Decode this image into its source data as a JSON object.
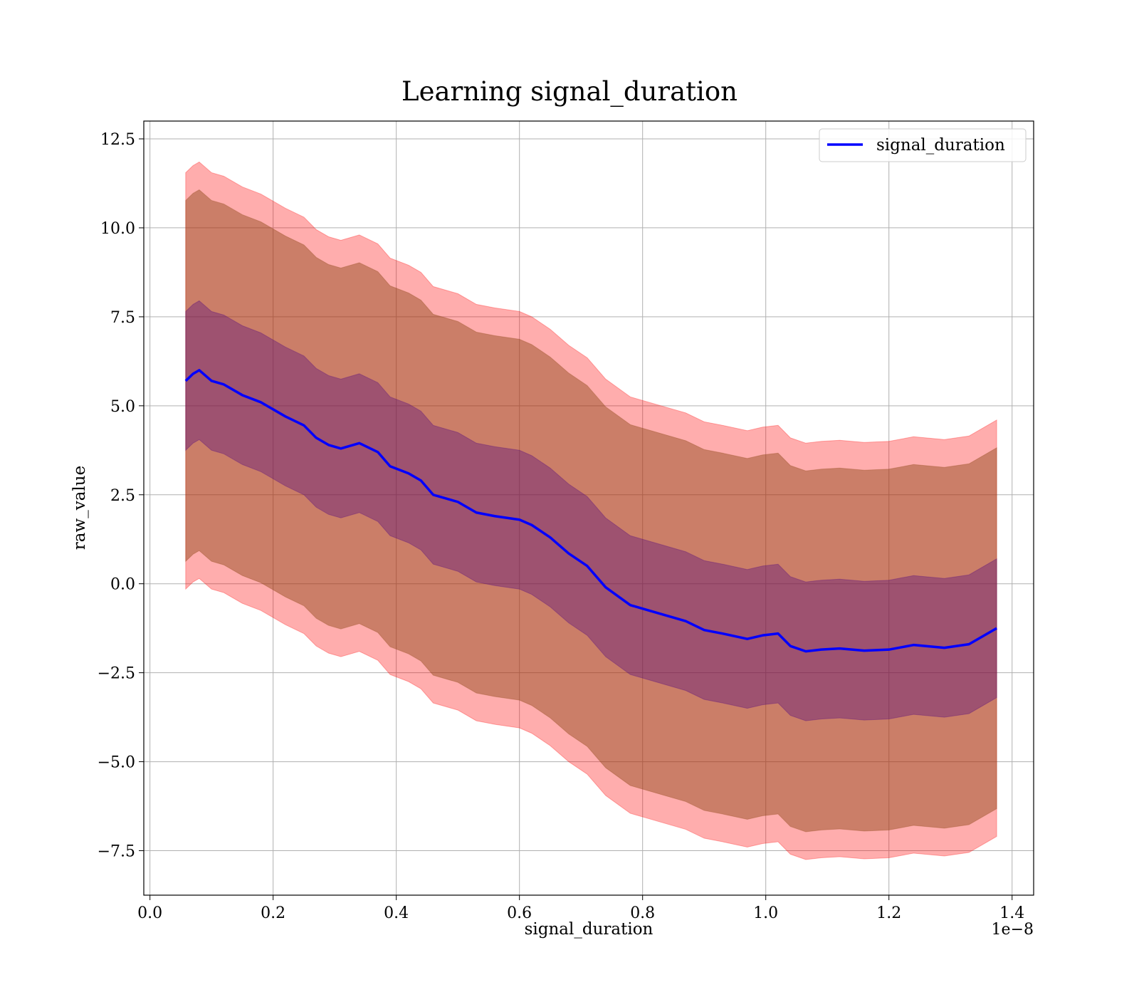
{
  "chart_data": {
    "type": "line",
    "title": "Learning signal_duration",
    "xlabel": "signal_duration",
    "ylabel": "raw_value",
    "x_offset_label": "1e−8",
    "xlim": [
      -0.01,
      1.435
    ],
    "ylim": [
      -8.75,
      13.0
    ],
    "x_ticks": [
      0.0,
      0.2,
      0.4,
      0.6,
      0.8,
      1.0,
      1.2,
      1.4
    ],
    "x_tick_labels": [
      "0.0",
      "0.2",
      "0.4",
      "0.6",
      "0.8",
      "1.0",
      "1.2",
      "1.4"
    ],
    "y_ticks": [
      -7.5,
      -5.0,
      -2.5,
      0.0,
      2.5,
      5.0,
      7.5,
      10.0,
      12.5
    ],
    "y_tick_labels": [
      "−7.5",
      "−5.0",
      "−2.5",
      "0.0",
      "2.5",
      "5.0",
      "7.5",
      "10.0",
      "12.5"
    ],
    "grid": true,
    "legend_position": "top-right",
    "colors": {
      "line": "#0000ff",
      "band3": "#ff0000",
      "band2": "#8b4513",
      "band1": "#4b0082",
      "grid": "#b0b0b0"
    },
    "series": [
      {
        "name": "signal_duration",
        "x": [
          0.058,
          0.07,
          0.08,
          0.1,
          0.12,
          0.15,
          0.18,
          0.2,
          0.22,
          0.25,
          0.27,
          0.29,
          0.31,
          0.34,
          0.37,
          0.39,
          0.42,
          0.44,
          0.46,
          0.5,
          0.53,
          0.56,
          0.6,
          0.62,
          0.65,
          0.68,
          0.71,
          0.74,
          0.78,
          0.81,
          0.84,
          0.87,
          0.9,
          0.93,
          0.97,
          0.995,
          1.02,
          1.04,
          1.065,
          1.09,
          1.12,
          1.16,
          1.2,
          1.24,
          1.29,
          1.33,
          1.375
        ],
        "values": [
          5.7,
          5.9,
          6.0,
          5.7,
          5.6,
          5.3,
          5.1,
          4.9,
          4.7,
          4.45,
          4.1,
          3.9,
          3.8,
          3.95,
          3.7,
          3.3,
          3.1,
          2.9,
          2.5,
          2.3,
          2.0,
          1.9,
          1.8,
          1.65,
          1.3,
          0.85,
          0.5,
          -0.1,
          -0.6,
          -0.75,
          -0.9,
          -1.05,
          -1.3,
          -1.4,
          -1.55,
          -1.45,
          -1.4,
          -1.75,
          -1.9,
          -1.85,
          -1.82,
          -1.88,
          -1.85,
          -1.72,
          -1.8,
          -1.7,
          -1.25
        ],
        "std": [
          1.95,
          1.95,
          1.95,
          1.95,
          1.95,
          1.95,
          1.95,
          1.95,
          1.95,
          1.95,
          1.95,
          1.95,
          1.95,
          1.95,
          1.95,
          1.95,
          1.95,
          1.95,
          1.95,
          1.95,
          1.95,
          1.95,
          1.95,
          1.95,
          1.95,
          1.95,
          1.95,
          1.95,
          1.95,
          1.95,
          1.95,
          1.95,
          1.95,
          1.95,
          1.95,
          1.95,
          1.95,
          1.95,
          1.95,
          1.95,
          1.95,
          1.95,
          1.95,
          1.95,
          1.95,
          1.95,
          1.95
        ],
        "bands_sigma": [
          1,
          2.6,
          3.0
        ]
      }
    ]
  }
}
